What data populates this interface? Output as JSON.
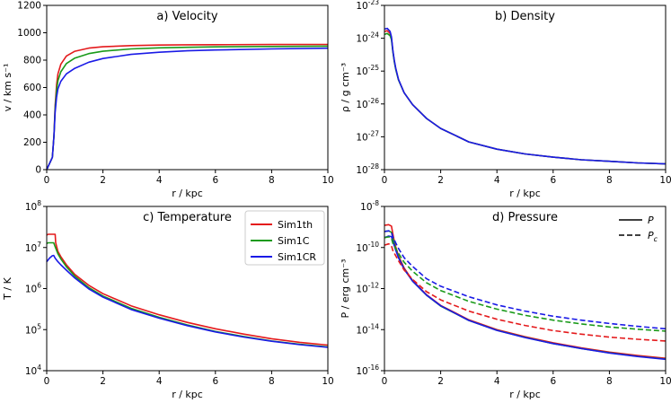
{
  "colors": {
    "sim1th": "#e41a1c",
    "sim1c": "#1a9a1a",
    "sim1cr": "#1a1ae6"
  },
  "chart_data": [
    {
      "type": "line",
      "title": "a) Velocity",
      "xlabel": "r / kpc",
      "ylabel": "v / km s⁻¹",
      "xlim": [
        0,
        10
      ],
      "ylim": [
        0,
        1200
      ],
      "yscale": "linear",
      "xticks": [
        "0",
        "2",
        "4",
        "6",
        "8",
        "10"
      ],
      "yticks": [
        "0",
        "200",
        "400",
        "600",
        "800",
        "1000",
        "1200"
      ],
      "series": [
        {
          "name": "Sim1th",
          "color": "#e41a1c",
          "style": "solid",
          "x": [
            0,
            0.2,
            0.26,
            0.3,
            0.35,
            0.4,
            0.5,
            0.7,
            1,
            1.5,
            2,
            3,
            4,
            5,
            6,
            8,
            10
          ],
          "y": [
            0,
            90,
            250,
            470,
            620,
            700,
            770,
            830,
            865,
            888,
            898,
            906,
            910,
            912,
            913,
            914,
            915
          ]
        },
        {
          "name": "Sim1C",
          "color": "#1a9a1a",
          "style": "solid",
          "x": [
            0,
            0.2,
            0.26,
            0.3,
            0.35,
            0.4,
            0.5,
            0.7,
            1,
            1.5,
            2,
            3,
            4,
            5,
            6,
            8,
            10
          ],
          "y": [
            0,
            90,
            250,
            450,
            580,
            650,
            715,
            775,
            815,
            848,
            865,
            882,
            890,
            894,
            897,
            900,
            902
          ]
        },
        {
          "name": "Sim1CR",
          "color": "#1a1ae6",
          "style": "solid",
          "x": [
            0,
            0.2,
            0.26,
            0.3,
            0.35,
            0.4,
            0.5,
            0.7,
            1,
            1.5,
            2,
            3,
            4,
            5,
            6,
            8,
            10
          ],
          "y": [
            0,
            90,
            250,
            420,
            530,
            590,
            645,
            700,
            740,
            785,
            812,
            842,
            858,
            868,
            874,
            882,
            887
          ]
        }
      ]
    },
    {
      "type": "line",
      "title": "b) Density",
      "xlabel": "r / kpc",
      "ylabel": "ρ / g cm⁻³",
      "xlim": [
        0,
        10
      ],
      "ylim": [
        1e-28,
        1e-23
      ],
      "yscale": "log",
      "xticks": [
        "0",
        "2",
        "4",
        "6",
        "8",
        "10"
      ],
      "yticks": [
        "10⁻²⁸",
        "10⁻²⁷",
        "10⁻²⁶",
        "10⁻²⁵",
        "10⁻²⁴",
        "10⁻²³"
      ],
      "series": [
        {
          "name": "Sim1th",
          "color": "#e41a1c",
          "style": "solid",
          "x": [
            0,
            0.1,
            0.2,
            0.25,
            0.3,
            0.35,
            0.4,
            0.5,
            0.7,
            1,
            1.5,
            2,
            3,
            4,
            5,
            6,
            7,
            8,
            9,
            10
          ],
          "y": [
            1.6e-24,
            1.7e-24,
            1.4e-24,
            1e-24,
            4e-25,
            2e-25,
            1.2e-25,
            5.5e-26,
            2.2e-26,
            9.5e-27,
            3.6e-27,
            1.8e-27,
            7e-28,
            4.2e-28,
            3e-28,
            2.4e-28,
            2e-28,
            1.8e-28,
            1.6e-28,
            1.5e-28
          ]
        },
        {
          "name": "Sim1C",
          "color": "#1a9a1a",
          "style": "solid",
          "x": [
            0,
            0.1,
            0.2,
            0.25,
            0.3,
            0.35,
            0.4,
            0.5,
            0.7,
            1,
            1.5,
            2,
            3,
            4,
            5,
            6,
            7,
            8,
            9,
            10
          ],
          "y": [
            1.3e-24,
            1.4e-24,
            1.2e-24,
            9e-25,
            3.8e-25,
            1.9e-25,
            1.15e-25,
            5.4e-26,
            2.2e-26,
            9.5e-27,
            3.6e-27,
            1.8e-27,
            7e-28,
            4.2e-28,
            3e-28,
            2.4e-28,
            2e-28,
            1.8e-28,
            1.6e-28,
            1.5e-28
          ]
        },
        {
          "name": "Sim1CR",
          "color": "#1a1ae6",
          "style": "solid",
          "x": [
            0,
            0.1,
            0.2,
            0.25,
            0.3,
            0.35,
            0.4,
            0.5,
            0.7,
            1,
            1.5,
            2,
            3,
            4,
            5,
            6,
            7,
            8,
            9,
            10
          ],
          "y": [
            1.9e-24,
            2e-24,
            1.6e-24,
            1.1e-24,
            4.2e-25,
            2.1e-25,
            1.25e-25,
            5.6e-26,
            2.2e-26,
            9.5e-27,
            3.6e-27,
            1.8e-27,
            7e-28,
            4.2e-28,
            3e-28,
            2.4e-28,
            2e-28,
            1.8e-28,
            1.6e-28,
            1.5e-28
          ]
        }
      ]
    },
    {
      "type": "line",
      "title": "c) Temperature",
      "xlabel": "r / kpc",
      "ylabel": "T / K",
      "xlim": [
        0,
        10
      ],
      "ylim": [
        10000.0,
        100000000.0
      ],
      "yscale": "log",
      "xticks": [
        "0",
        "2",
        "4",
        "6",
        "8",
        "10"
      ],
      "yticks": [
        "10⁴",
        "10⁵",
        "10⁶",
        "10⁷",
        "10⁸"
      ],
      "legend": {
        "position": "top-right",
        "entries": [
          "Sim1th",
          "Sim1C",
          "Sim1CR"
        ]
      },
      "series": [
        {
          "name": "Sim1th",
          "color": "#e41a1c",
          "style": "solid",
          "x": [
            0,
            0.05,
            0.3,
            0.32,
            0.4,
            0.5,
            0.7,
            1,
            1.5,
            2,
            3,
            4,
            5,
            6,
            7,
            8,
            9,
            10
          ],
          "y": [
            20000000.0,
            21000000.0,
            21000000.0,
            13000000.0,
            8000000.0,
            6000000.0,
            3800000.0,
            2200000.0,
            1200000.0,
            750000.0,
            380000.0,
            230000.0,
            150000.0,
            105000.0,
            78000.0,
            60000.0,
            49000.0,
            42000.0
          ]
        },
        {
          "name": "Sim1C",
          "color": "#1a9a1a",
          "style": "solid",
          "x": [
            0,
            0.05,
            0.25,
            0.3,
            0.4,
            0.5,
            0.7,
            1,
            1.5,
            2,
            3,
            4,
            5,
            6,
            7,
            8,
            9,
            10
          ],
          "y": [
            12500000.0,
            13000000.0,
            13000000.0,
            10500000.0,
            7000000.0,
            5300000.0,
            3400000.0,
            2000000.0,
            1050000.0,
            660000.0,
            330000.0,
            200000.0,
            130000.0,
            90000.0,
            68000.0,
            53000.0,
            44000.0,
            38000.0
          ]
        },
        {
          "name": "Sim1CR",
          "color": "#1a1ae6",
          "style": "solid",
          "x": [
            0,
            0.1,
            0.2,
            0.25,
            0.3,
            0.4,
            0.5,
            0.7,
            1,
            1.5,
            2,
            3,
            4,
            5,
            6,
            7,
            8,
            9,
            10
          ],
          "y": [
            4500000.0,
            5500000.0,
            6300000.0,
            6400000.0,
            5500000.0,
            4500000.0,
            3800000.0,
            2800000.0,
            1800000.0,
            980000.0,
            620000.0,
            310000.0,
            190000.0,
            125000.0,
            88000.0,
            66000.0,
            52000.0,
            43000.0,
            37000.0
          ]
        }
      ]
    },
    {
      "type": "line",
      "title": "d) Pressure",
      "xlabel": "r / kpc",
      "ylabel": "P / erg cm⁻³",
      "xlim": [
        0,
        10
      ],
      "ylim": [
        1e-16,
        1e-08
      ],
      "yscale": "log",
      "xticks": [
        "0",
        "2",
        "4",
        "6",
        "8",
        "10"
      ],
      "yticks": [
        "10⁻¹⁶",
        "10⁻¹⁴",
        "10⁻¹²",
        "10⁻¹⁰",
        "10⁻⁸"
      ],
      "legend": {
        "position": "top-right",
        "entries": [
          "P",
          "Pc"
        ]
      },
      "series": [
        {
          "name": "Sim1th P",
          "color": "#e41a1c",
          "style": "solid",
          "x": [
            0,
            0.15,
            0.25,
            0.3,
            0.35,
            0.4,
            0.5,
            0.7,
            1,
            1.5,
            2,
            3,
            4,
            5,
            6,
            7,
            8,
            9,
            10
          ],
          "y": [
            1.2e-09,
            1.3e-09,
            1.1e-09,
            4.5e-10,
            2e-10,
            1.1e-10,
            4e-11,
            1e-11,
            2.5e-12,
            5e-13,
            1.5e-13,
            3e-14,
            1e-14,
            4.5e-15,
            2.3e-15,
            1.3e-15,
            8e-16,
            5.5e-16,
            4e-16
          ]
        },
        {
          "name": "Sim1C P",
          "color": "#1a9a1a",
          "style": "solid",
          "x": [
            0,
            0.15,
            0.25,
            0.3,
            0.35,
            0.4,
            0.5,
            0.7,
            1,
            1.5,
            2,
            3,
            4,
            5,
            6,
            7,
            8,
            9,
            10
          ],
          "y": [
            6e-10,
            6.5e-10,
            5.5e-10,
            2.8e-10,
            1.5e-10,
            8.5e-11,
            3.4e-11,
            9e-12,
            2.3e-12,
            4.7e-13,
            1.4e-13,
            2.8e-14,
            9.3e-15,
            4.2e-15,
            2.1e-15,
            1.2e-15,
            7.4e-16,
            5e-16,
            3.7e-16
          ]
        },
        {
          "name": "Sim1CR P",
          "color": "#1a1ae6",
          "style": "solid",
          "x": [
            0,
            0.15,
            0.25,
            0.3,
            0.35,
            0.4,
            0.5,
            0.7,
            1,
            1.5,
            2,
            3,
            4,
            5,
            6,
            7,
            8,
            9,
            10
          ],
          "y": [
            3e-10,
            3.6e-10,
            3.4e-10,
            2e-10,
            1.2e-10,
            7.5e-11,
            3.2e-11,
            8.8e-12,
            2.3e-12,
            4.8e-13,
            1.45e-13,
            2.8e-14,
            9.2e-15,
            4.1e-15,
            2.1e-15,
            1.2e-15,
            7.3e-16,
            4.9e-16,
            3.6e-16
          ]
        },
        {
          "name": "Sim1th Pc",
          "color": "#e41a1c",
          "style": "dashed",
          "x": [
            0,
            0.15,
            0.25,
            0.3,
            0.4,
            0.5,
            0.7,
            1,
            1.5,
            2,
            3,
            4,
            5,
            6,
            7,
            8,
            9,
            10
          ],
          "y": [
            1.3e-10,
            1.5e-10,
            1.2e-10,
            7e-11,
            4e-11,
            2.3e-11,
            8e-12,
            2.8e-12,
            7e-13,
            2.8e-13,
            8e-14,
            3.2e-14,
            1.6e-14,
            9e-15,
            6e-15,
            4.3e-15,
            3.4e-15,
            2.8e-15
          ]
        },
        {
          "name": "Sim1C Pc",
          "color": "#1a9a1a",
          "style": "dashed",
          "x": [
            0,
            0.15,
            0.25,
            0.3,
            0.4,
            0.5,
            0.7,
            1,
            1.5,
            2,
            3,
            4,
            5,
            6,
            7,
            8,
            9,
            10
          ],
          "y": [
            3e-10,
            3.3e-10,
            2.8e-10,
            1.6e-10,
            9e-11,
            5.2e-11,
            1.9e-11,
            7e-12,
            1.9e-12,
            8e-13,
            2.4e-13,
            1e-13,
            5e-14,
            2.9e-14,
            1.9e-14,
            1.35e-14,
            1.05e-14,
            8.5e-15
          ]
        },
        {
          "name": "Sim1CR Pc",
          "color": "#1a1ae6",
          "style": "dashed",
          "x": [
            0,
            0.15,
            0.25,
            0.3,
            0.4,
            0.5,
            0.7,
            1,
            1.5,
            2,
            3,
            4,
            5,
            6,
            7,
            8,
            9,
            10
          ],
          "y": [
            6e-10,
            6.5e-10,
            5.5e-10,
            3.3e-10,
            1.7e-10,
            9e-11,
            3.2e-11,
            1.2e-11,
            3e-12,
            1.3e-12,
            4e-13,
            1.6e-13,
            8e-14,
            4.5e-14,
            2.9e-14,
            2e-14,
            1.45e-14,
            1.1e-14
          ]
        }
      ]
    }
  ]
}
